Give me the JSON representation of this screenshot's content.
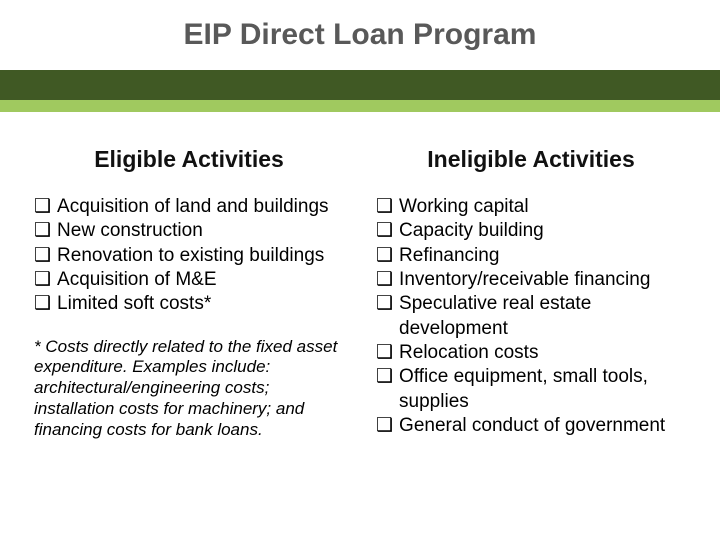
{
  "title": "EIP Direct Loan Program",
  "colors": {
    "title_text": "#595959",
    "bar_dark": "#405924",
    "bar_light": "#a0c95f",
    "header_text": "#111111",
    "body_text": "#000000",
    "background": "#ffffff"
  },
  "typography": {
    "title_fontsize": 30,
    "header_fontsize": 23,
    "body_fontsize": 19,
    "footnote_fontsize": 17,
    "font_family": "Arial"
  },
  "bullet_marker": "❑",
  "left": {
    "header": "Eligible Activities",
    "items": [
      "Acquisition of land and buildings",
      "New construction",
      "Renovation to existing buildings",
      "Acquisition of M&E",
      "Limited soft costs*"
    ],
    "footnote": "* Costs directly related to the fixed asset expenditure. Examples include: architectural/engineering costs; installation costs for machinery; and financing costs for bank loans."
  },
  "right": {
    "header": "Ineligible Activities",
    "items": [
      "Working capital",
      "Capacity building",
      "Refinancing",
      "Inventory/receivable financing",
      "Speculative real estate development",
      "Relocation costs",
      "Office equipment, small tools, supplies",
      "General conduct of government"
    ]
  }
}
